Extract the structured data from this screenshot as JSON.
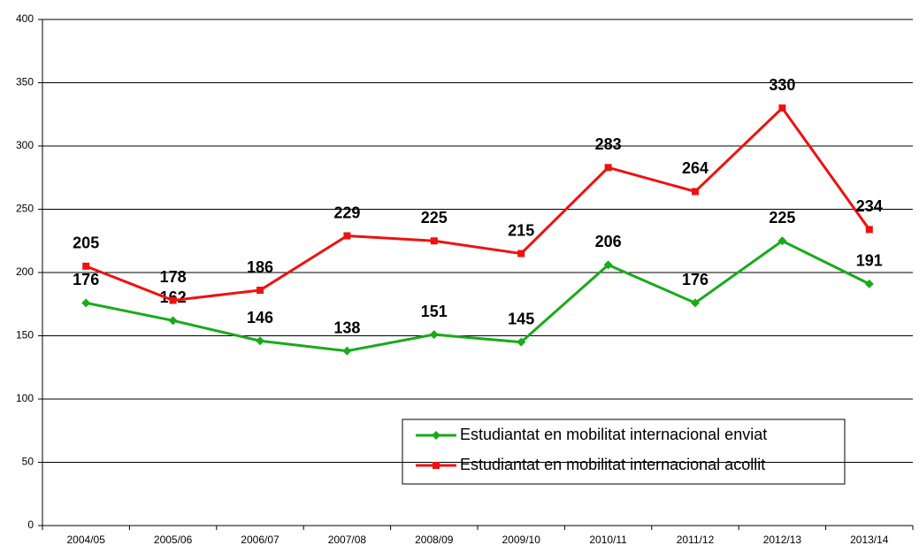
{
  "chart_data": {
    "type": "line",
    "categories": [
      "2004/05",
      "2005/06",
      "2006/07",
      "2007/08",
      "2008/09",
      "2009/10",
      "2010/11",
      "2011/12",
      "2012/13",
      "2013/14"
    ],
    "series": [
      {
        "name": "Estudiantat en mobilitat internacional enviat",
        "color": "#1aaa1a",
        "marker": "diamond",
        "values": [
          176,
          162,
          146,
          138,
          151,
          145,
          206,
          176,
          225,
          191
        ]
      },
      {
        "name": "Estudiantat en mobilitat internacional acollit",
        "color": "#ee1111",
        "marker": "square",
        "values": [
          205,
          178,
          186,
          229,
          225,
          215,
          283,
          264,
          330,
          234
        ]
      }
    ],
    "ylim": [
      0,
      400
    ],
    "yticks": [
      0,
      50,
      100,
      150,
      200,
      250,
      300,
      350,
      400
    ],
    "grid": true,
    "legend": "lower right"
  }
}
